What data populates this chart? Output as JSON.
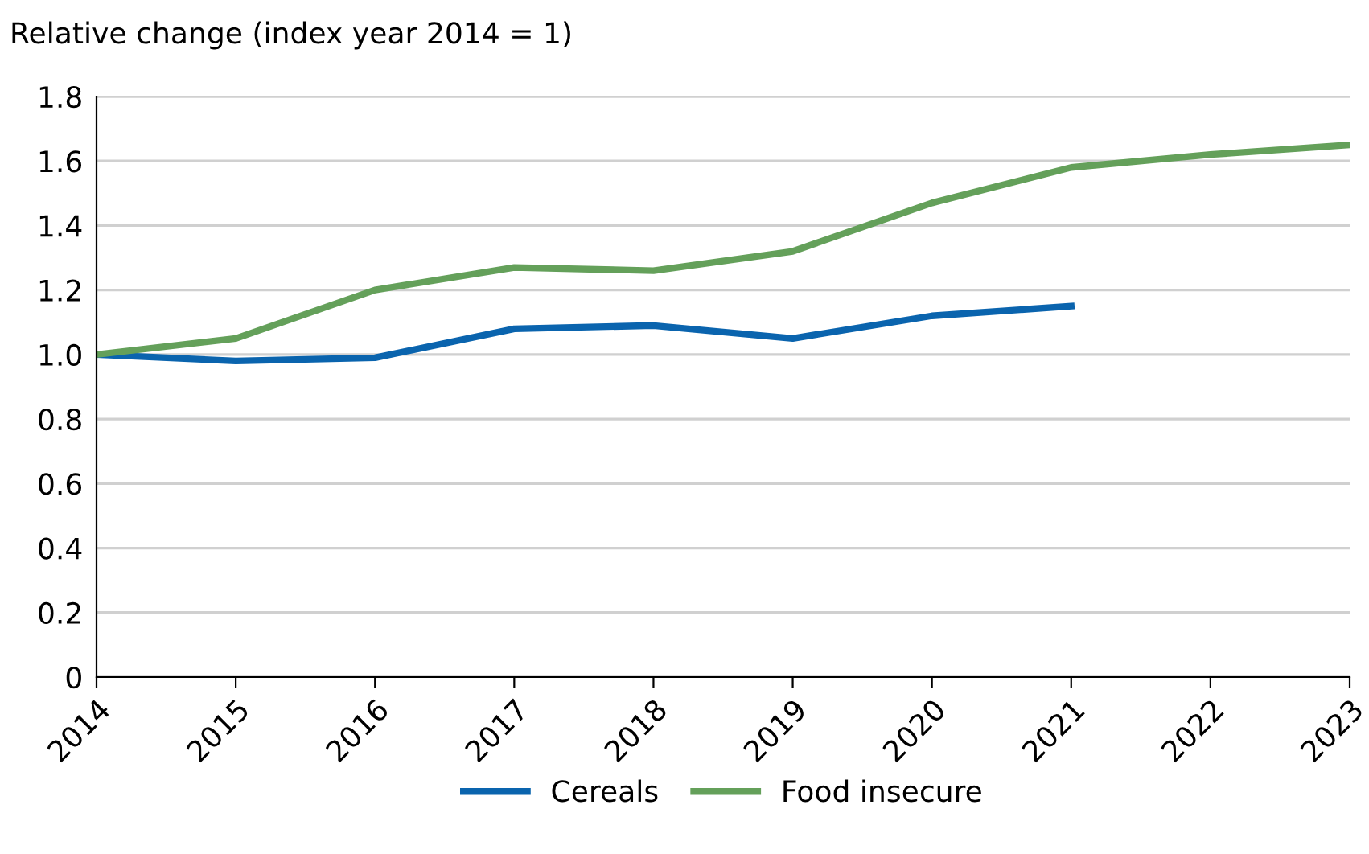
{
  "chart_data": {
    "type": "line",
    "ylabel": "Relative change (index year 2014 = 1)",
    "categories": [
      "2014",
      "2015",
      "2016",
      "2017",
      "2018",
      "2019",
      "2020",
      "2021",
      "2022",
      "2023"
    ],
    "series": [
      {
        "name": "Cereals",
        "color": "#0a64ae",
        "values": [
          1.0,
          0.98,
          0.99,
          1.08,
          1.09,
          1.05,
          1.12,
          1.15,
          null,
          null
        ]
      },
      {
        "name": "Food insecure",
        "color": "#64a05a",
        "values": [
          1.0,
          1.05,
          1.2,
          1.27,
          1.26,
          1.32,
          1.47,
          1.58,
          1.62,
          1.65
        ]
      }
    ],
    "ylim": [
      0,
      1.8
    ],
    "yticks": [
      {
        "value": 0,
        "label": "0"
      },
      {
        "value": 0.2,
        "label": "0.2"
      },
      {
        "value": 0.4,
        "label": "0.4"
      },
      {
        "value": 0.6,
        "label": "0.6"
      },
      {
        "value": 0.8,
        "label": "0.8"
      },
      {
        "value": 1.0,
        "label": "1.0"
      },
      {
        "value": 1.2,
        "label": "1.2"
      },
      {
        "value": 1.4,
        "label": "1.4"
      },
      {
        "value": 1.6,
        "label": "1.6"
      },
      {
        "value": 1.8,
        "label": "1.8"
      }
    ],
    "grid": "y",
    "legend": "bottom",
    "marker": "none",
    "line_style": "solid"
  }
}
